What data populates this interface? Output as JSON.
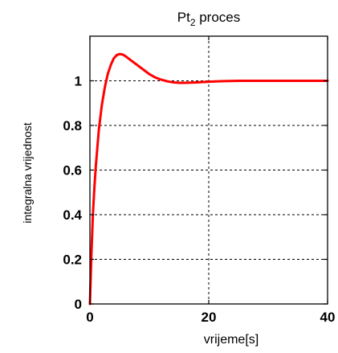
{
  "chart_data": {
    "type": "line",
    "title_main": "Pt",
    "title_subscript": "2",
    "title_rest": " proces",
    "xlabel": "vrijeme[s]",
    "ylabel": "integralna vrijednost",
    "xlim": [
      0,
      40
    ],
    "ylim": [
      0,
      1.2
    ],
    "xticks": [
      0,
      20,
      40
    ],
    "yticks": [
      0,
      0.2,
      0.4,
      0.6,
      0.8,
      1
    ],
    "xtick_labels": [
      "0",
      "20",
      "40"
    ],
    "ytick_labels": [
      "0",
      "0.2",
      "0.4",
      "0.6",
      "0.8",
      "1"
    ],
    "grid": true,
    "series": [
      {
        "color": "#ff0000",
        "x": [
          0,
          0.25,
          0.5,
          0.75,
          1,
          1.5,
          2,
          2.5,
          3,
          3.5,
          4,
          4.5,
          5,
          5.5,
          6,
          7,
          8,
          9,
          10,
          11,
          12,
          13,
          14,
          15,
          16,
          18,
          20,
          22,
          25,
          30,
          35,
          40
        ],
        "y": [
          0,
          0.22,
          0.4,
          0.52,
          0.62,
          0.78,
          0.89,
          0.97,
          1.03,
          1.07,
          1.1,
          1.115,
          1.12,
          1.118,
          1.11,
          1.09,
          1.07,
          1.05,
          1.03,
          1.015,
          1.005,
          0.998,
          0.993,
          0.991,
          0.991,
          0.993,
          0.996,
          0.998,
          1.0,
          1.0,
          1.0,
          1.0
        ]
      }
    ]
  }
}
